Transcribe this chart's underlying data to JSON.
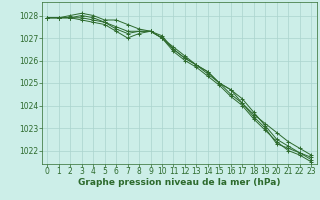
{
  "bg_color": "#cceee8",
  "grid_color": "#aad4ce",
  "line_color": "#2d6a2d",
  "xlabel": "Graphe pression niveau de la mer (hPa)",
  "xlabel_fontsize": 6.5,
  "xtick_fontsize": 5.5,
  "ytick_fontsize": 5.5,
  "ylim": [
    1021.4,
    1028.6
  ],
  "xlim": [
    -0.5,
    23.5
  ],
  "yticks": [
    1022,
    1023,
    1024,
    1025,
    1026,
    1027,
    1028
  ],
  "xticks": [
    0,
    1,
    2,
    3,
    4,
    5,
    6,
    7,
    8,
    9,
    10,
    11,
    12,
    13,
    14,
    15,
    16,
    17,
    18,
    19,
    20,
    21,
    22,
    23
  ],
  "series": [
    [
      1027.9,
      1027.9,
      1028.0,
      1028.1,
      1028.0,
      1027.8,
      1027.8,
      1027.6,
      1027.4,
      1027.3,
      1027.1,
      1026.5,
      1026.1,
      1025.8,
      1025.4,
      1025.0,
      1024.5,
      1024.1,
      1023.6,
      1023.2,
      1022.8,
      1022.4,
      1022.1,
      1021.8
    ],
    [
      1027.9,
      1027.9,
      1027.9,
      1028.0,
      1027.9,
      1027.7,
      1027.4,
      1027.2,
      1027.3,
      1027.3,
      1027.0,
      1026.6,
      1026.2,
      1025.8,
      1025.5,
      1025.0,
      1024.7,
      1024.3,
      1023.7,
      1023.1,
      1022.5,
      1022.2,
      1021.9,
      1021.6
    ],
    [
      1027.9,
      1027.9,
      1027.9,
      1027.9,
      1027.8,
      1027.7,
      1027.5,
      1027.3,
      1027.3,
      1027.3,
      1027.0,
      1026.5,
      1026.1,
      1025.8,
      1025.5,
      1025.0,
      1024.7,
      1024.1,
      1023.5,
      1023.0,
      1022.3,
      1022.1,
      1021.9,
      1021.7
    ],
    [
      1027.9,
      1027.9,
      1027.9,
      1027.8,
      1027.7,
      1027.6,
      1027.3,
      1027.0,
      1027.2,
      1027.3,
      1027.0,
      1026.4,
      1026.0,
      1025.7,
      1025.3,
      1024.9,
      1024.4,
      1024.0,
      1023.4,
      1022.9,
      1022.4,
      1022.0,
      1021.8,
      1021.5
    ]
  ]
}
